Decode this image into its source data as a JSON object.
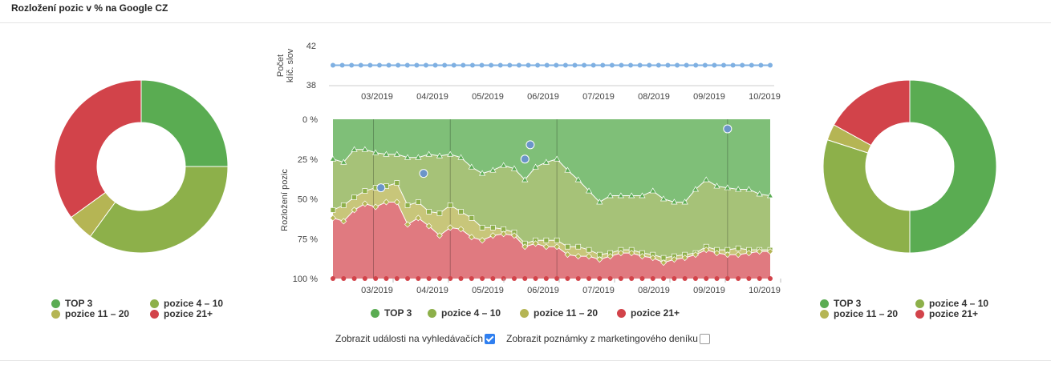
{
  "page": {
    "title": "Rozložení pozic v % na Google CZ"
  },
  "colors": {
    "top3": "#5aac52",
    "p4_10": "#8db04a",
    "p11_20": "#b5b554",
    "p21": "#d2434a",
    "keywords": "#7fb0e2",
    "event": "#6b95c9"
  },
  "legend": [
    "TOP 3",
    "pozice 4 – 10",
    "pozice 11 – 20",
    "pozice 21+"
  ],
  "controls": {
    "show_events_label": "Zobrazit události na vyhledávačích",
    "show_events_checked": true,
    "show_notes_label": "Zobrazit poznámky z marketingového deníku",
    "show_notes_checked": false
  },
  "chart_data": [
    {
      "type": "pie",
      "donut": true,
      "labels": [
        "TOP 3",
        "pozice 4 – 10",
        "pozice 11 – 20",
        "pozice 21+"
      ],
      "values": [
        25,
        35,
        5,
        35
      ]
    },
    {
      "type": "line",
      "ylabel": "Počet klíč. slov",
      "y_ticks": [
        "42",
        "38"
      ],
      "ylim": [
        38,
        42
      ],
      "x_ticks": [
        "03/2019",
        "04/2019",
        "05/2019",
        "06/2019",
        "07/2019",
        "08/2019",
        "09/2019",
        "10/2019"
      ],
      "values": [
        40,
        40,
        40,
        40,
        40,
        40,
        40,
        40,
        40,
        40,
        40,
        40,
        40,
        40,
        40,
        40,
        40,
        40,
        40,
        40,
        40,
        40,
        40,
        40,
        40,
        40,
        40,
        40,
        40,
        40,
        40,
        40,
        40,
        40,
        40,
        40,
        40,
        40,
        40,
        40,
        40,
        40,
        40,
        40,
        40,
        40,
        40,
        40
      ]
    },
    {
      "type": "area",
      "stacked": true,
      "ylabel": "Rozložení pozic",
      "y_ticks": [
        "0 %",
        "25 %",
        "50 %",
        "75 %",
        "100 %"
      ],
      "ylim": [
        0,
        100
      ],
      "x_ticks": [
        "03/2019",
        "04/2019",
        "05/2019",
        "06/2019",
        "07/2019",
        "08/2019",
        "09/2019",
        "10/2019"
      ],
      "series": [
        {
          "name": "TOP 3",
          "values": [
            25,
            27,
            19,
            19,
            21,
            22,
            22,
            24,
            24,
            22,
            23,
            22,
            24,
            30,
            34,
            32,
            29,
            31,
            38,
            30,
            27,
            25,
            32,
            38,
            45,
            52,
            48,
            48,
            48,
            48,
            45,
            50,
            52,
            52,
            44,
            38,
            42,
            43,
            44,
            44,
            47,
            48
          ]
        },
        {
          "name": "pozice 4 – 10",
          "values": [
            32,
            27,
            30,
            26,
            22,
            20,
            18,
            30,
            28,
            36,
            36,
            32,
            34,
            32,
            34,
            36,
            40,
            40,
            40,
            46,
            49,
            51,
            48,
            42,
            37,
            33,
            36,
            34,
            34,
            36,
            40,
            37,
            34,
            33,
            40,
            42,
            40,
            39,
            37,
            38,
            35,
            34
          ]
        },
        {
          "name": "pozice 11 – 20",
          "values": [
            5,
            10,
            8,
            8,
            12,
            10,
            12,
            12,
            10,
            9,
            14,
            14,
            11,
            12,
            8,
            5,
            3,
            2,
            2,
            2,
            4,
            4,
            5,
            6,
            4,
            3,
            2,
            2,
            2,
            2,
            2,
            3,
            2,
            2,
            1,
            2,
            2,
            3,
            4,
            2,
            1,
            1
          ]
        },
        {
          "name": "pozice 21+",
          "values": [
            38,
            36,
            43,
            47,
            45,
            48,
            48,
            34,
            38,
            33,
            27,
            32,
            31,
            26,
            24,
            27,
            28,
            27,
            20,
            22,
            20,
            20,
            15,
            14,
            14,
            12,
            14,
            16,
            16,
            14,
            13,
            10,
            12,
            13,
            15,
            18,
            16,
            15,
            15,
            16,
            17,
            17
          ]
        }
      ],
      "events": [
        {
          "x": 4.5,
          "y": 43
        },
        {
          "x": 8.5,
          "y": 34
        },
        {
          "x": 18,
          "y": 25
        },
        {
          "x": 18.5,
          "y": 16
        },
        {
          "x": 37,
          "y": 6
        }
      ]
    },
    {
      "type": "pie",
      "donut": true,
      "labels": [
        "TOP 3",
        "pozice 4 – 10",
        "pozice 11 – 20",
        "pozice 21+"
      ],
      "values": [
        50,
        30,
        3,
        17
      ]
    }
  ]
}
